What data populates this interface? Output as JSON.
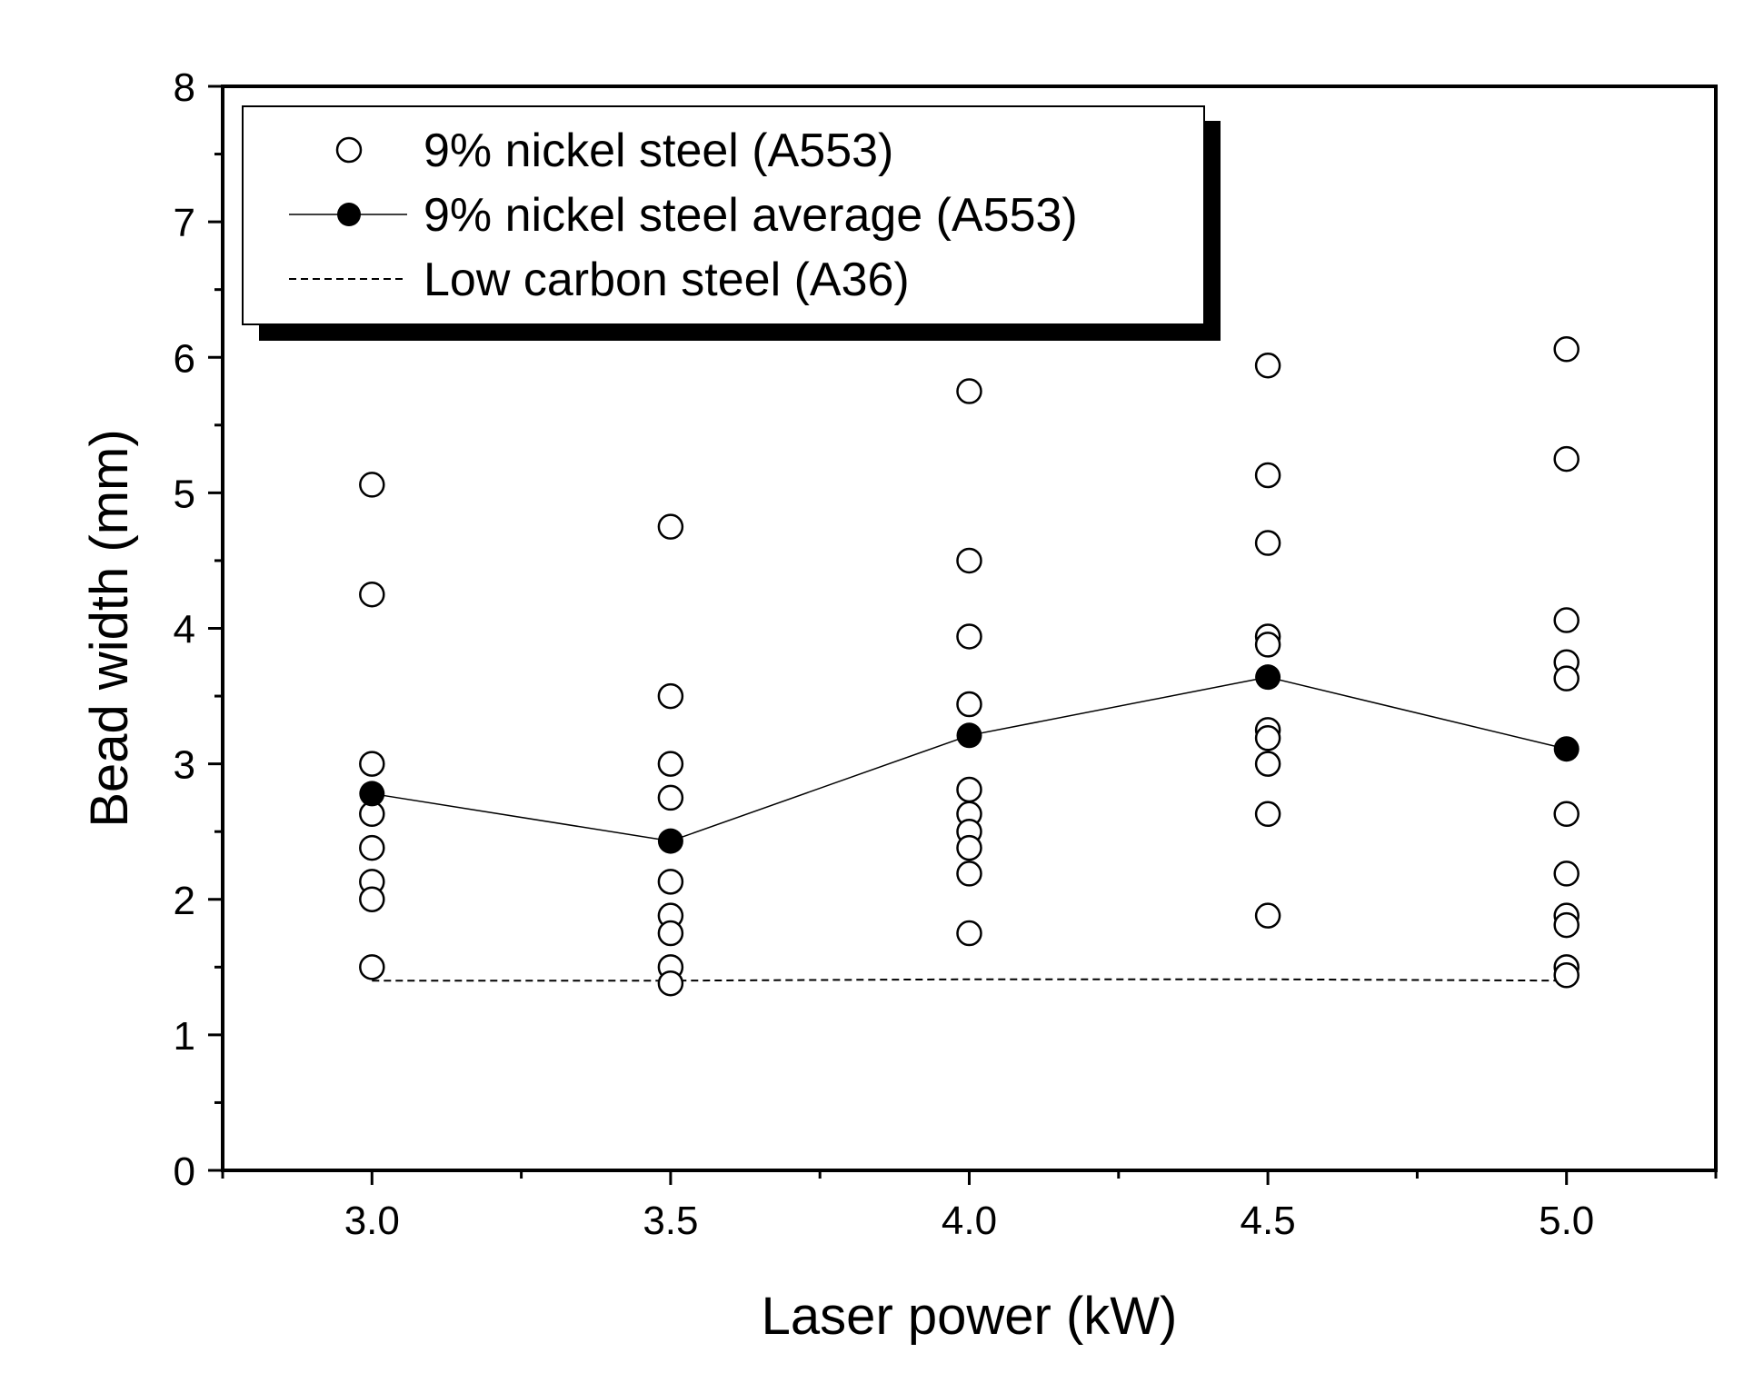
{
  "chart_data": {
    "type": "scatter",
    "title": "",
    "xlabel": "Laser power (kW)",
    "ylabel": "Bead width (mm)",
    "xlim": [
      2.75,
      5.25
    ],
    "ylim": [
      0,
      8
    ],
    "grid": false,
    "legend_position": "top-left",
    "x_ticks": [
      3.0,
      3.5,
      4.0,
      4.5,
      5.0
    ],
    "x_tick_labels": [
      "3.0",
      "3.5",
      "4.0",
      "4.5",
      "5.0"
    ],
    "y_ticks": [
      0,
      1,
      2,
      3,
      4,
      5,
      6,
      7,
      8
    ],
    "y_tick_labels": [
      "0",
      "1",
      "2",
      "3",
      "4",
      "5",
      "6",
      "7",
      "8"
    ],
    "series": [
      {
        "name": "9% nickel steel (A553)",
        "style": "open-circle",
        "points": [
          [
            3.0,
            5.06
          ],
          [
            3.0,
            4.25
          ],
          [
            3.0,
            3.0
          ],
          [
            3.0,
            2.63
          ],
          [
            3.0,
            2.38
          ],
          [
            3.0,
            2.13
          ],
          [
            3.0,
            2.0
          ],
          [
            3.0,
            1.5
          ],
          [
            3.5,
            4.75
          ],
          [
            3.5,
            3.5
          ],
          [
            3.5,
            3.0
          ],
          [
            3.5,
            2.75
          ],
          [
            3.5,
            2.13
          ],
          [
            3.5,
            1.88
          ],
          [
            3.5,
            1.75
          ],
          [
            3.5,
            1.5
          ],
          [
            3.5,
            1.38
          ],
          [
            4.0,
            5.75
          ],
          [
            4.0,
            4.5
          ],
          [
            4.0,
            3.94
          ],
          [
            4.0,
            3.44
          ],
          [
            4.0,
            2.81
          ],
          [
            4.0,
            2.63
          ],
          [
            4.0,
            2.5
          ],
          [
            4.0,
            2.38
          ],
          [
            4.0,
            2.19
          ],
          [
            4.0,
            1.75
          ],
          [
            4.5,
            5.94
          ],
          [
            4.5,
            5.13
          ],
          [
            4.5,
            4.63
          ],
          [
            4.5,
            3.94
          ],
          [
            4.5,
            3.88
          ],
          [
            4.5,
            3.25
          ],
          [
            4.5,
            3.19
          ],
          [
            4.5,
            3.0
          ],
          [
            4.5,
            2.63
          ],
          [
            4.5,
            1.88
          ],
          [
            5.0,
            6.06
          ],
          [
            5.0,
            5.25
          ],
          [
            5.0,
            4.06
          ],
          [
            5.0,
            3.75
          ],
          [
            5.0,
            3.63
          ],
          [
            5.0,
            2.63
          ],
          [
            5.0,
            2.19
          ],
          [
            5.0,
            1.88
          ],
          [
            5.0,
            1.81
          ],
          [
            5.0,
            1.5
          ],
          [
            5.0,
            1.44
          ]
        ]
      },
      {
        "name": "9% nickel steel average (A553)",
        "style": "filled-circle-line",
        "x": [
          3.0,
          3.5,
          4.0,
          4.5,
          5.0
        ],
        "values": [
          2.78,
          2.43,
          3.21,
          3.64,
          3.11
        ]
      },
      {
        "name": "Low carbon steel (A36)",
        "style": "dashed-line",
        "x": [
          3.0,
          3.5,
          4.0,
          4.5,
          5.0
        ],
        "values": [
          1.4,
          1.4,
          1.41,
          1.41,
          1.4
        ]
      }
    ]
  }
}
